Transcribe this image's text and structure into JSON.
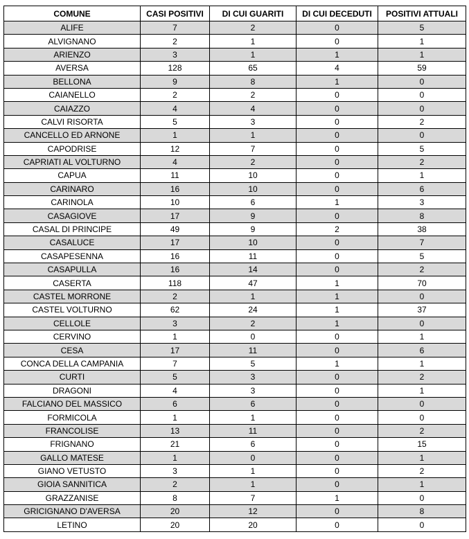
{
  "table": {
    "header": [
      "COMUNE",
      "CASI POSITIVI",
      "DI CUI GUARITI",
      "DI CUI DECEDUTI",
      "POSITIVI ATTUALI"
    ],
    "rows": [
      [
        "ALIFE",
        7,
        2,
        0,
        5
      ],
      [
        "ALVIGNANO",
        2,
        1,
        0,
        1
      ],
      [
        "ARIENZO",
        3,
        1,
        1,
        1
      ],
      [
        "AVERSA",
        128,
        65,
        4,
        59
      ],
      [
        "BELLONA",
        9,
        8,
        1,
        0
      ],
      [
        "CAIANELLO",
        2,
        2,
        0,
        0
      ],
      [
        "CAIAZZO",
        4,
        4,
        0,
        0
      ],
      [
        "CALVI RISORTA",
        5,
        3,
        0,
        2
      ],
      [
        "CANCELLO ED ARNONE",
        1,
        1,
        0,
        0
      ],
      [
        "CAPODRISE",
        12,
        7,
        0,
        5
      ],
      [
        "CAPRIATI AL VOLTURNO",
        4,
        2,
        0,
        2
      ],
      [
        "CAPUA",
        11,
        10,
        0,
        1
      ],
      [
        "CARINARO",
        16,
        10,
        0,
        6
      ],
      [
        "CARINOLA",
        10,
        6,
        1,
        3
      ],
      [
        "CASAGIOVE",
        17,
        9,
        0,
        8
      ],
      [
        "CASAL DI PRINCIPE",
        49,
        9,
        2,
        38
      ],
      [
        "CASALUCE",
        17,
        10,
        0,
        7
      ],
      [
        "CASAPESENNA",
        16,
        11,
        0,
        5
      ],
      [
        "CASAPULLA",
        16,
        14,
        0,
        2
      ],
      [
        "CASERTA",
        118,
        47,
        1,
        70
      ],
      [
        "CASTEL MORRONE",
        2,
        1,
        1,
        0
      ],
      [
        "CASTEL VOLTURNO",
        62,
        24,
        1,
        37
      ],
      [
        "CELLOLE",
        3,
        2,
        1,
        0
      ],
      [
        "CERVINO",
        1,
        0,
        0,
        1
      ],
      [
        "CESA",
        17,
        11,
        0,
        6
      ],
      [
        "CONCA DELLA CAMPANIA",
        7,
        5,
        1,
        1
      ],
      [
        "CURTI",
        5,
        3,
        0,
        2
      ],
      [
        "DRAGONI",
        4,
        3,
        0,
        1
      ],
      [
        "FALCIANO DEL MASSICO",
        6,
        6,
        0,
        0
      ],
      [
        "FORMICOLA",
        1,
        1,
        0,
        0
      ],
      [
        "FRANCOLISE",
        13,
        11,
        0,
        2
      ],
      [
        "FRIGNANO",
        21,
        6,
        0,
        15
      ],
      [
        "GALLO MATESE",
        1,
        0,
        0,
        1
      ],
      [
        "GIANO VETUSTO",
        3,
        1,
        0,
        2
      ],
      [
        "GIOIA SANNITICA",
        2,
        1,
        0,
        1
      ],
      [
        "GRAZZANISE",
        8,
        7,
        1,
        0
      ],
      [
        "GRICIGNANO D'AVERSA",
        20,
        12,
        0,
        8
      ],
      [
        "LETINO",
        20,
        20,
        0,
        0
      ]
    ]
  }
}
